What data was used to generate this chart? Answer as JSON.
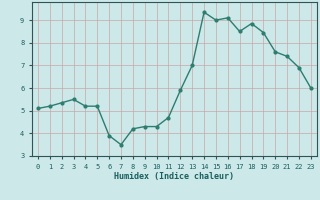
{
  "x": [
    0,
    1,
    2,
    3,
    4,
    5,
    6,
    7,
    8,
    9,
    10,
    11,
    12,
    13,
    14,
    15,
    16,
    17,
    18,
    19,
    20,
    21,
    22,
    23
  ],
  "y": [
    5.1,
    5.2,
    5.35,
    5.5,
    5.2,
    5.2,
    3.9,
    3.5,
    4.2,
    4.3,
    4.3,
    4.7,
    5.9,
    7.0,
    9.35,
    9.0,
    9.1,
    8.5,
    8.85,
    8.45,
    7.6,
    7.4,
    6.9,
    6.0
  ],
  "xlabel": "Humidex (Indice chaleur)",
  "xlim": [
    -0.5,
    23.5
  ],
  "ylim": [
    3,
    9.8
  ],
  "yticks": [
    3,
    4,
    5,
    6,
    7,
    8,
    9
  ],
  "xticks": [
    0,
    1,
    2,
    3,
    4,
    5,
    6,
    7,
    8,
    9,
    10,
    11,
    12,
    13,
    14,
    15,
    16,
    17,
    18,
    19,
    20,
    21,
    22,
    23
  ],
  "line_color": "#2d7d70",
  "bg_color": "#cce8e8",
  "grid_color": "#b8d4d4",
  "font_color": "#1a5f5f",
  "tick_label_color": "#1a5f5f"
}
